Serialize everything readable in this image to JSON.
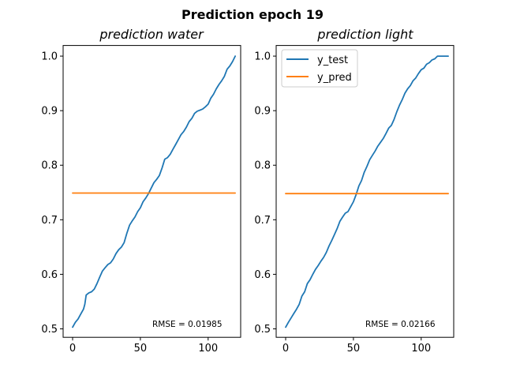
{
  "figure": {
    "suptitle": "Prediction epoch 19"
  },
  "colors": {
    "y_test": "#1f77b4",
    "y_pred": "#ff7f0e"
  },
  "chart_data": [
    {
      "type": "line",
      "title": "prediction water",
      "xlabel": "",
      "ylabel": "",
      "xlim": [
        -7,
        124
      ],
      "ylim": [
        0.4845,
        1.0195
      ],
      "xticks": [
        0,
        50,
        100
      ],
      "yticks": [
        0.5,
        0.6,
        0.7,
        0.8,
        0.9,
        1.0
      ],
      "grid": false,
      "legend": null,
      "annotation": "RMSE = 0.01985",
      "series": [
        {
          "name": "y_test",
          "color": "#1f77b4",
          "x": [
            0,
            2,
            4,
            6,
            8,
            9,
            10,
            12,
            14,
            16,
            18,
            20,
            22,
            24,
            26,
            28,
            30,
            32,
            34,
            36,
            38,
            40,
            42,
            44,
            46,
            48,
            50,
            52,
            54,
            56,
            58,
            60,
            62,
            64,
            66,
            68,
            70,
            72,
            74,
            76,
            78,
            80,
            82,
            84,
            86,
            88,
            90,
            92,
            94,
            96,
            98,
            100,
            102,
            104,
            106,
            108,
            110,
            112,
            114,
            116,
            118,
            120
          ],
          "y": [
            0.503,
            0.512,
            0.518,
            0.527,
            0.536,
            0.545,
            0.562,
            0.566,
            0.568,
            0.573,
            0.583,
            0.595,
            0.606,
            0.612,
            0.618,
            0.621,
            0.628,
            0.638,
            0.645,
            0.65,
            0.658,
            0.675,
            0.69,
            0.698,
            0.705,
            0.715,
            0.722,
            0.733,
            0.74,
            0.748,
            0.758,
            0.768,
            0.774,
            0.781,
            0.795,
            0.811,
            0.814,
            0.82,
            0.829,
            0.838,
            0.847,
            0.856,
            0.862,
            0.87,
            0.88,
            0.886,
            0.895,
            0.899,
            0.901,
            0.903,
            0.907,
            0.912,
            0.923,
            0.93,
            0.94,
            0.948,
            0.955,
            0.963,
            0.976,
            0.982,
            0.99,
            1.0
          ]
        },
        {
          "name": "y_pred",
          "color": "#ff7f0e",
          "x": [
            0,
            120
          ],
          "y": [
            0.749,
            0.749
          ]
        }
      ]
    },
    {
      "type": "line",
      "title": "prediction light",
      "xlabel": "",
      "ylabel": "",
      "xlim": [
        -7,
        124
      ],
      "ylim": [
        0.4845,
        1.0195
      ],
      "xticks": [
        0,
        50,
        100
      ],
      "yticks": [
        0.5,
        0.6,
        0.7,
        0.8,
        0.9,
        1.0
      ],
      "grid": false,
      "legend": "upper-left",
      "annotation": "RMSE = 0.02166",
      "series": [
        {
          "name": "y_test",
          "color": "#1f77b4",
          "x": [
            0,
            2,
            4,
            6,
            8,
            10,
            12,
            14,
            16,
            18,
            20,
            22,
            24,
            26,
            28,
            30,
            32,
            34,
            36,
            38,
            40,
            42,
            44,
            46,
            48,
            50,
            52,
            54,
            56,
            58,
            60,
            62,
            64,
            66,
            68,
            70,
            72,
            74,
            76,
            78,
            80,
            82,
            84,
            86,
            88,
            90,
            92,
            94,
            96,
            98,
            100,
            102,
            104,
            106,
            108,
            110,
            112,
            114,
            116,
            118,
            120
          ],
          "y": [
            0.503,
            0.512,
            0.52,
            0.528,
            0.536,
            0.545,
            0.56,
            0.568,
            0.583,
            0.59,
            0.6,
            0.609,
            0.616,
            0.624,
            0.631,
            0.64,
            0.652,
            0.662,
            0.673,
            0.684,
            0.697,
            0.705,
            0.712,
            0.715,
            0.724,
            0.733,
            0.746,
            0.762,
            0.772,
            0.787,
            0.798,
            0.81,
            0.818,
            0.826,
            0.835,
            0.842,
            0.849,
            0.858,
            0.868,
            0.873,
            0.884,
            0.898,
            0.91,
            0.92,
            0.932,
            0.94,
            0.946,
            0.955,
            0.96,
            0.968,
            0.975,
            0.978,
            0.985,
            0.988,
            0.993,
            0.995,
            1.0,
            1.0,
            1.0,
            1.0,
            1.0
          ]
        },
        {
          "name": "y_pred",
          "color": "#ff7f0e",
          "x": [
            0,
            120
          ],
          "y": [
            0.748,
            0.748
          ]
        }
      ]
    }
  ]
}
